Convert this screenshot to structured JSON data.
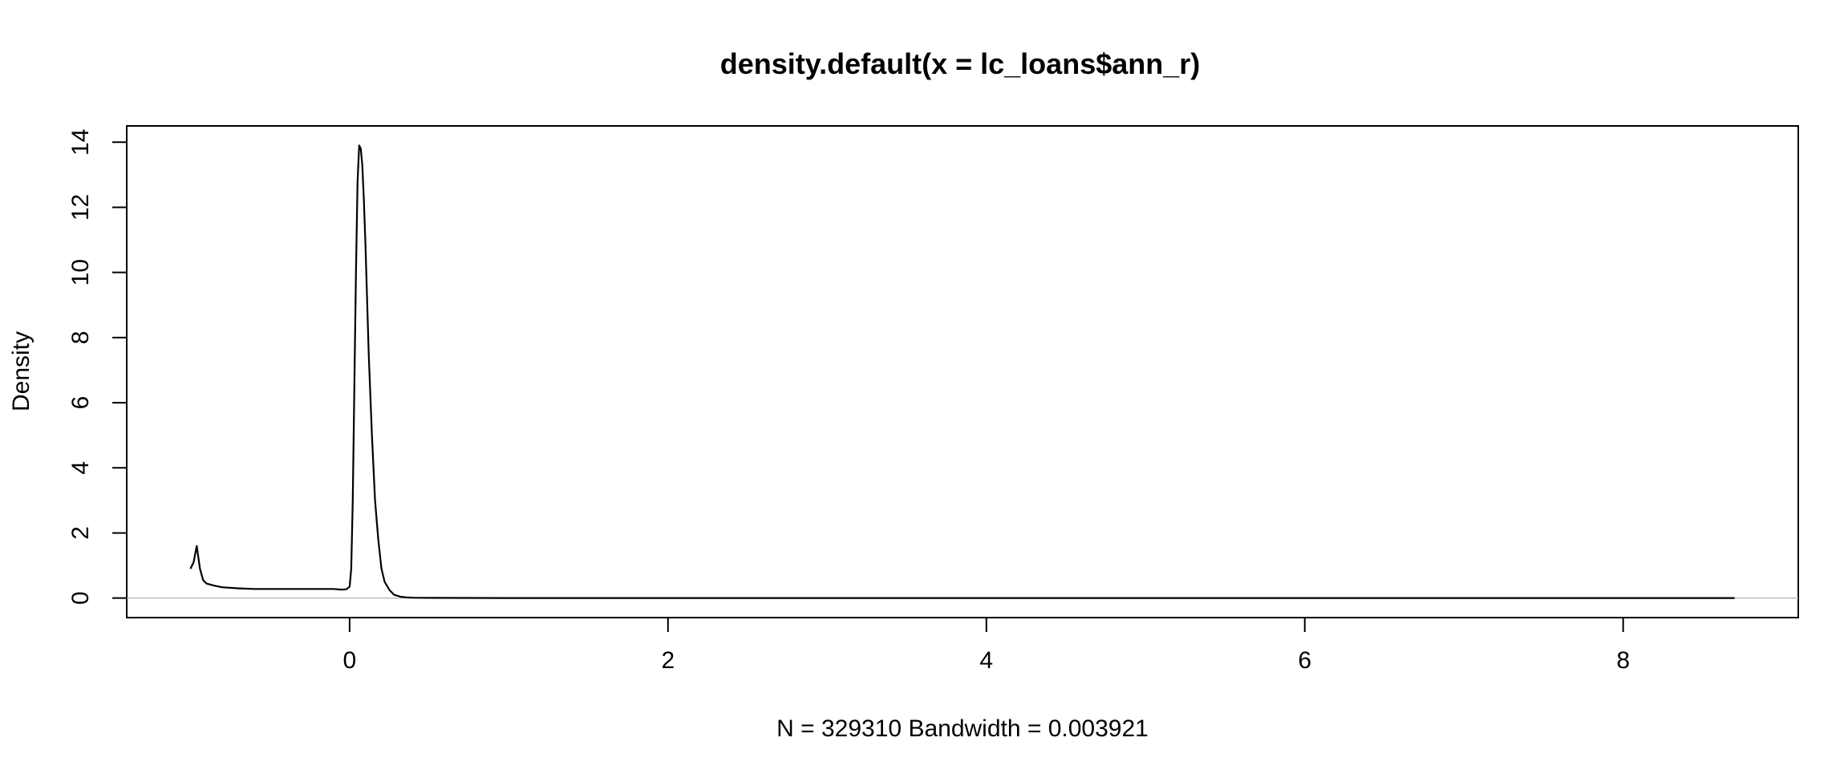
{
  "chart_data": {
    "type": "line",
    "title": "density.default(x = lc_loans$ann_r)",
    "xlabel": "N = 329310   Bandwidth = 0.003921",
    "ylabel": "Density",
    "xlim": [
      -1.4,
      9.1
    ],
    "ylim": [
      -0.6,
      14.5
    ],
    "xticks": [
      0,
      2,
      4,
      6,
      8
    ],
    "yticks": [
      0,
      2,
      4,
      6,
      8,
      10,
      12,
      14
    ],
    "grid": false,
    "zero_line": true,
    "series": [
      {
        "x": [
          -1.0,
          -0.98,
          -0.96,
          -0.94,
          -0.92,
          -0.9,
          -0.85,
          -0.8,
          -0.7,
          -0.6,
          -0.5,
          -0.4,
          -0.3,
          -0.2,
          -0.1,
          -0.05,
          -0.02,
          0.0,
          0.01,
          0.02,
          0.03,
          0.04,
          0.05,
          0.06,
          0.07,
          0.08,
          0.09,
          0.1,
          0.12,
          0.14,
          0.16,
          0.18,
          0.2,
          0.22,
          0.25,
          0.28,
          0.32,
          0.36,
          0.4,
          0.5,
          1.0,
          2.0,
          4.0,
          6.0,
          8.0,
          8.7
        ],
        "y": [
          0.9,
          1.1,
          1.6,
          0.9,
          0.55,
          0.45,
          0.38,
          0.33,
          0.3,
          0.28,
          0.28,
          0.28,
          0.28,
          0.28,
          0.28,
          0.26,
          0.27,
          0.35,
          0.9,
          3.0,
          6.5,
          10.0,
          12.8,
          13.9,
          13.8,
          13.3,
          12.2,
          10.8,
          7.5,
          5.0,
          3.0,
          1.8,
          0.9,
          0.5,
          0.25,
          0.1,
          0.04,
          0.02,
          0.01,
          0.005,
          0.0,
          0.0,
          0.0,
          0.0,
          0.0,
          0.0
        ]
      }
    ]
  }
}
